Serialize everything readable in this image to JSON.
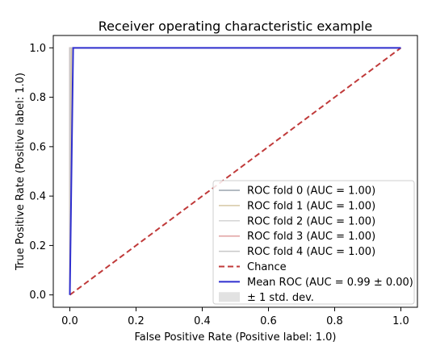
{
  "chart_data": {
    "type": "line",
    "title": "Receiver operating characteristic example",
    "xlabel": "False Positive Rate (Positive label: 1.0)",
    "ylabel": "True Positive Rate (Positive label: 1.0)",
    "xlim": [
      -0.05,
      1.05
    ],
    "ylim": [
      -0.05,
      1.05
    ],
    "xticks": [
      0.0,
      0.2,
      0.4,
      0.6,
      0.8,
      1.0
    ],
    "yticks": [
      0.0,
      0.2,
      0.4,
      0.6,
      0.8,
      1.0
    ],
    "xtick_labels": [
      "0.0",
      "0.2",
      "0.4",
      "0.6",
      "0.8",
      "1.0"
    ],
    "ytick_labels": [
      "0.0",
      "0.2",
      "0.4",
      "0.6",
      "0.8",
      "1.0"
    ],
    "grid": false,
    "legend_position": "lower-right",
    "series": [
      {
        "name": "ROC fold 0 (AUC = 1.00)",
        "color": "#9aa3ad",
        "style": "solid",
        "x": [
          0.0,
          0.0,
          0.0,
          1.0
        ],
        "y": [
          0.0,
          0.0,
          1.0,
          1.0
        ]
      },
      {
        "name": "ROC fold 1 (AUC = 1.00)",
        "color": "#d6c8a4",
        "style": "solid",
        "x": [
          0.0,
          0.0,
          0.005,
          1.0
        ],
        "y": [
          0.0,
          0.0,
          1.0,
          1.0
        ]
      },
      {
        "name": "ROC fold 2 (AUC = 1.00)",
        "color": "#d4d4d4",
        "style": "solid",
        "x": [
          0.0,
          0.0,
          0.0,
          1.0
        ],
        "y": [
          0.0,
          0.0,
          1.0,
          1.0
        ]
      },
      {
        "name": "ROC fold 3 (AUC = 1.00)",
        "color": "#e0a0a0",
        "style": "solid",
        "x": [
          0.0,
          0.0,
          0.0,
          1.0
        ],
        "y": [
          0.0,
          0.0,
          1.0,
          1.0
        ]
      },
      {
        "name": "ROC fold 4 (AUC = 1.00)",
        "color": "#c8c8c8",
        "style": "solid",
        "x": [
          0.0,
          0.0,
          0.0,
          1.0
        ],
        "y": [
          0.0,
          0.0,
          1.0,
          1.0
        ]
      },
      {
        "name": "Chance",
        "color": "#c03a3a",
        "style": "dashed",
        "x": [
          0.0,
          1.0
        ],
        "y": [
          0.0,
          1.0
        ]
      },
      {
        "name": "Mean ROC (AUC = 0.99 ± 0.00)",
        "color": "#2f2fcf",
        "style": "solid",
        "x": [
          0.0,
          0.01,
          0.02,
          1.0
        ],
        "y": [
          0.0,
          1.0,
          1.0,
          1.0
        ]
      }
    ],
    "std_band": {
      "name": "± 1 std. dev.",
      "color": "#e2e2e2"
    }
  }
}
